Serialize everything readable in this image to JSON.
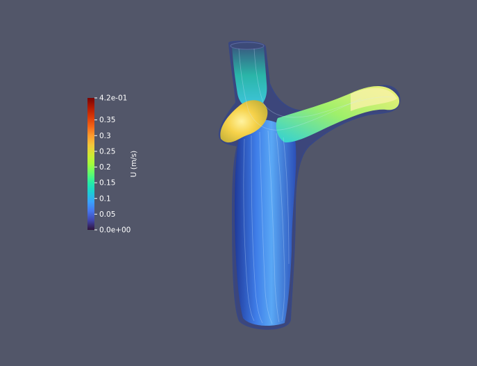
{
  "colorbar": {
    "title": "U (m/s)",
    "max_label": "4.2e-01",
    "min_label": "0.0e+00",
    "range": [
      0,
      0.42
    ],
    "ticks": [
      {
        "value": 0.42,
        "label": "4.2e-01"
      },
      {
        "value": 0.35,
        "label": "0.35"
      },
      {
        "value": 0.3,
        "label": "0.3"
      },
      {
        "value": 0.25,
        "label": "0.25"
      },
      {
        "value": 0.2,
        "label": "0.2"
      },
      {
        "value": 0.15,
        "label": "0.15"
      },
      {
        "value": 0.1,
        "label": "0.1"
      },
      {
        "value": 0.05,
        "label": "0.05"
      },
      {
        "value": 0.0,
        "label": "0.0e+00"
      }
    ],
    "colormap": [
      "#30123b",
      "#4145ab",
      "#4675ed",
      "#39a2fc",
      "#1bcfd4",
      "#24eca6",
      "#61fc6c",
      "#a4fc3b",
      "#d1e834",
      "#f3c63a",
      "#fe9b2d",
      "#f36315",
      "#d93806",
      "#b11901",
      "#7a0403"
    ]
  },
  "colors": {
    "background": "#525669"
  }
}
